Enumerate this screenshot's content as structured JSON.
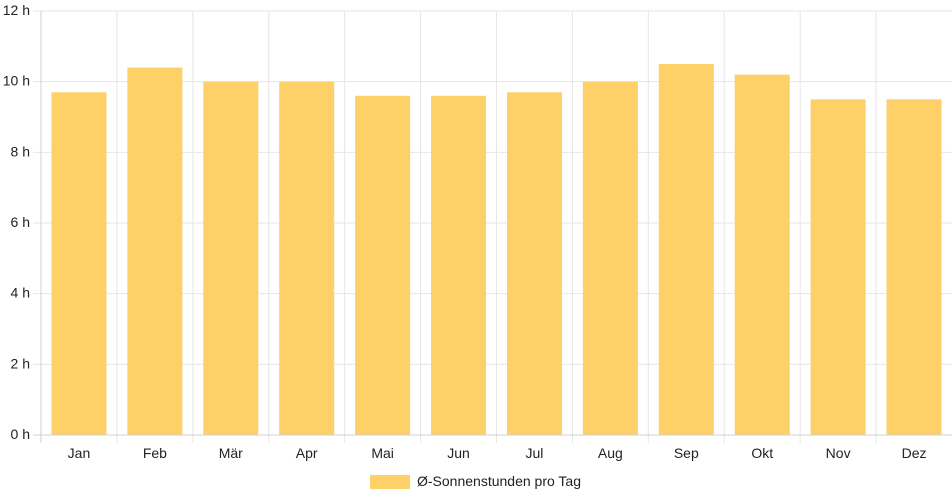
{
  "chart_data": {
    "type": "bar",
    "categories": [
      "Jan",
      "Feb",
      "Mär",
      "Apr",
      "Mai",
      "Jun",
      "Jul",
      "Aug",
      "Sep",
      "Okt",
      "Nov",
      "Dez"
    ],
    "series": [
      {
        "name": "Ø-Sonnenstunden pro Tag",
        "values": [
          9.7,
          10.4,
          10.0,
          10.0,
          9.6,
          9.6,
          9.7,
          10.0,
          10.5,
          10.2,
          9.5,
          9.5
        ],
        "color": "#fdd068"
      }
    ],
    "y_ticks": [
      "0 h",
      "2 h",
      "4 h",
      "6 h",
      "8 h",
      "10 h",
      "12 h"
    ],
    "ylim": [
      0,
      12
    ],
    "grid": true,
    "legend": "bottom-center"
  }
}
